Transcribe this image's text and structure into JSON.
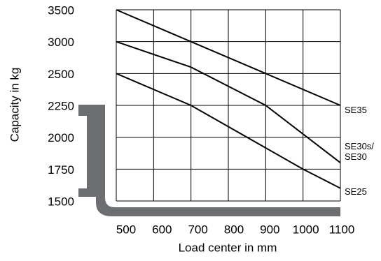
{
  "chart_data": {
    "type": "line",
    "y_label": "Capacity in kg",
    "x_label": "Load center in mm",
    "series": [
      {
        "name": "SE35",
        "color": "#000000",
        "x": [
          500,
          700,
          900,
          1100
        ],
        "values": [
          3500,
          3000,
          2500,
          2250
        ]
      },
      {
        "name": "SE30s/\nSE30",
        "color": "#000000",
        "x": [
          500,
          700,
          900,
          1100
        ],
        "values": [
          3000,
          2600,
          2250,
          1800
        ]
      },
      {
        "name": "SE25",
        "color": "#000000",
        "x": [
          500,
          700,
          1000,
          1100
        ],
        "values": [
          2500,
          2250,
          1750,
          1600
        ]
      }
    ],
    "xlim": [
      500,
      1100
    ],
    "xticks": [
      500,
      600,
      700,
      800,
      900,
      1000,
      1100
    ],
    "ylim": [
      1500,
      3500
    ],
    "yticks": [
      1500,
      1750,
      2000,
      2250,
      2500,
      3000,
      3500
    ],
    "grid": true
  }
}
